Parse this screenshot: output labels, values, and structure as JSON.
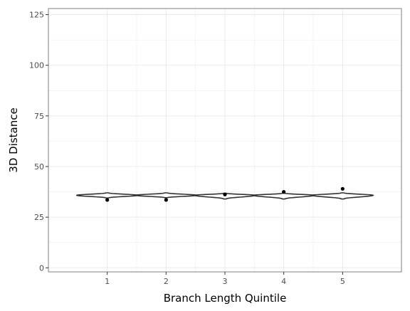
{
  "chart_data": {
    "type": "violin",
    "xlabel": "Branch Length Quintile",
    "ylabel": "3D Distance",
    "categories": [
      "1",
      "2",
      "3",
      "4",
      "5"
    ],
    "ylim": [
      -2,
      128
    ],
    "yticks": [
      0,
      25,
      50,
      75,
      100,
      125
    ],
    "grid": true,
    "violins": [
      {
        "category": "1",
        "min": 34.5,
        "max": 37.0,
        "center": 35.8,
        "outliers": [
          33.5
        ]
      },
      {
        "category": "2",
        "min": 34.6,
        "max": 37.0,
        "center": 35.8,
        "outliers": [
          33.5
        ]
      },
      {
        "category": "3",
        "min": 34.0,
        "max": 36.8,
        "center": 35.8,
        "outliers": [
          36.2
        ]
      },
      {
        "category": "4",
        "min": 34.0,
        "max": 36.8,
        "center": 35.8,
        "outliers": [
          37.5
        ]
      },
      {
        "category": "5",
        "min": 34.0,
        "max": 37.0,
        "center": 35.8,
        "outliers": [
          39.0
        ]
      }
    ],
    "colors": {
      "panel_border": "#7f7f7f",
      "grid": "#ebebeb",
      "violin_stroke": "#333333",
      "violin_fill": "#ffffff",
      "point": "#000000"
    }
  }
}
